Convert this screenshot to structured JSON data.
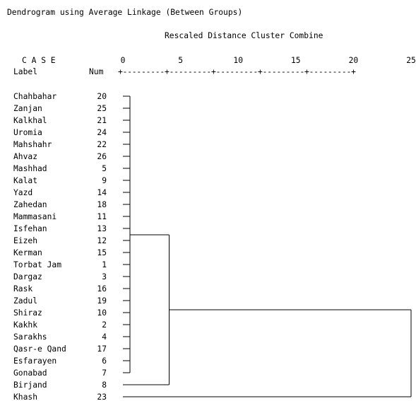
{
  "header": {
    "title": "Dendrogram using Average Linkage (Between Groups)",
    "subtitle": "Rescaled Distance Cluster Combine",
    "case_label": "C A S E",
    "label_header": "Label",
    "num_header": "Num",
    "axis_rule": "+---------+---------+---------+---------+---------+"
  },
  "chart_data": {
    "type": "dendrogram",
    "title": "Dendrogram using Average Linkage (Between Groups)",
    "xlabel": "Rescaled Distance Cluster Combine",
    "xlim": [
      0,
      25
    ],
    "x_ticks": [
      0,
      5,
      10,
      15,
      20,
      25
    ],
    "x_tick_labels": [
      "0",
      "5",
      "10",
      "15",
      "20",
      "25"
    ],
    "cases": [
      {
        "label": "Chahbahar",
        "num": "20"
      },
      {
        "label": "Zanjan",
        "num": "25"
      },
      {
        "label": "Kalkhal",
        "num": "21"
      },
      {
        "label": "Uromia",
        "num": "24"
      },
      {
        "label": "Mahshahr",
        "num": "22"
      },
      {
        "label": "Ahvaz",
        "num": "26"
      },
      {
        "label": "Mashhad",
        "num": "5"
      },
      {
        "label": "Kalat",
        "num": "9"
      },
      {
        "label": "Yazd",
        "num": "14"
      },
      {
        "label": "Zahedan",
        "num": "18"
      },
      {
        "label": "Mammasani",
        "num": "11"
      },
      {
        "label": "Isfehan",
        "num": "13"
      },
      {
        "label": "Eizeh",
        "num": "12"
      },
      {
        "label": "Kerman",
        "num": "15"
      },
      {
        "label": "Torbat Jam",
        "num": "1"
      },
      {
        "label": "Dargaz",
        "num": "3"
      },
      {
        "label": "Rask",
        "num": "16"
      },
      {
        "label": "Zadul",
        "num": "19"
      },
      {
        "label": "Shiraz",
        "num": "10"
      },
      {
        "label": "Kakhk",
        "num": "2"
      },
      {
        "label": "Sarakhs",
        "num": "4"
      },
      {
        "label": "Qasr-e Qand",
        "num": "17"
      },
      {
        "label": "Esfarayen",
        "num": "6"
      },
      {
        "label": "Gonabad",
        "num": "7"
      },
      {
        "label": "Birjand",
        "num": "8"
      },
      {
        "label": "Khash",
        "num": "23"
      }
    ],
    "merges": [
      {
        "members": "cases 1-24",
        "distance": 0.6
      },
      {
        "members": "cluster(cases 1-24) + Birjand",
        "distance": 4.0
      },
      {
        "members": "cluster(cases 1-25) + Khash",
        "distance": 25.0
      }
    ]
  }
}
